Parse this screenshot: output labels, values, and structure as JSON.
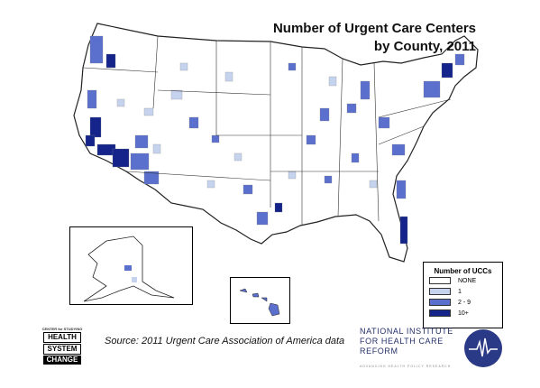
{
  "title_line1": "Number of Urgent Care Centers",
  "title_line2": "by County, 2011",
  "legend": {
    "title": "Number of  UCCs",
    "items": [
      {
        "label": "NONE",
        "color": "#ffffff"
      },
      {
        "label": "1",
        "color": "#c6d3ee"
      },
      {
        "label": "2 - 9",
        "color": "#5b6fcc"
      },
      {
        "label": "10+",
        "color": "#14248a"
      }
    ]
  },
  "source": "Source: 2011 Urgent Care Association of America data",
  "logos": {
    "hsc": {
      "line_top": "CENTER for STUDYING",
      "line1": "HEALTH",
      "line2": "SYSTEM",
      "line3": "CHANGE"
    },
    "nihcr": {
      "line1": "NATIONAL INSTITUTE",
      "line2": "FOR HEALTH CARE REFORM",
      "line3": "ADVANCING HEALTH POLICY RESEARCH"
    }
  },
  "colors": {
    "none": "#ffffff",
    "one": "#c6d3ee",
    "few": "#5b6fcc",
    "many": "#14248a",
    "border": "#555555"
  }
}
